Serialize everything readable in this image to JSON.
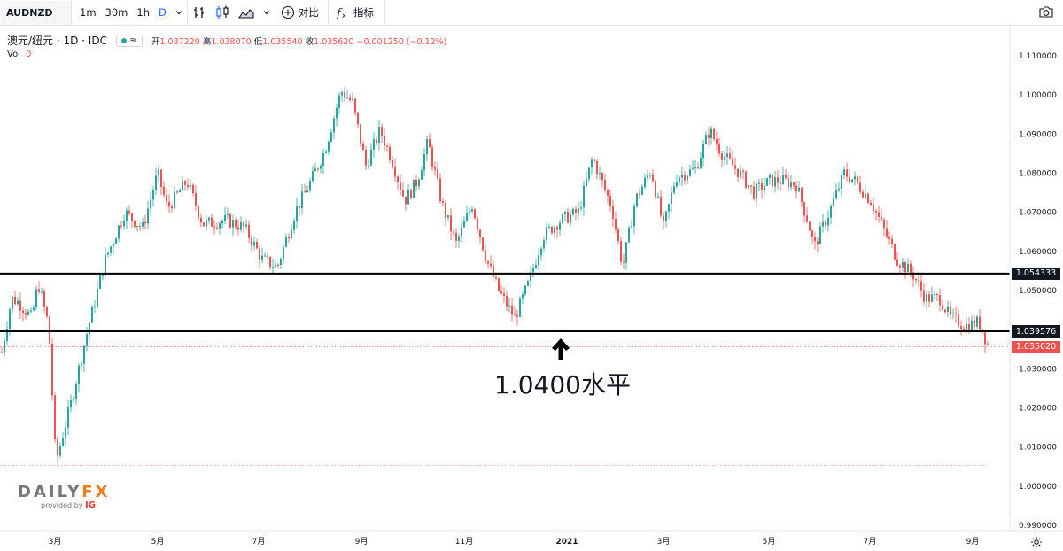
{
  "toolbar": {
    "symbol": "AUDNZD",
    "intervals": [
      "1m",
      "30m",
      "1h",
      "D"
    ],
    "active_interval": "D",
    "compare_label": "对比",
    "indicators_label": "指标",
    "icons": [
      "chevron-down-icon",
      "bar-style-icon",
      "candle-style-icon",
      "area-style-icon",
      "chevron-down-icon",
      "add-compare-icon",
      "fx-indicator-icon",
      "camera-icon"
    ]
  },
  "legend": {
    "title": "澳元/纽元 · 1D · IDC",
    "open_label": "开",
    "open": "1.037220",
    "high_label": "高",
    "high": "1.038070",
    "low_label": "低",
    "low": "1.035540",
    "close_label": "收",
    "close": "1.035620",
    "change": "−0.001250 (−0.12%)",
    "vol_label": "Vol",
    "vol_value": "0"
  },
  "annotation": {
    "text": "1.0400水平",
    "icon": "arrow-up-icon"
  },
  "logo": {
    "main_a": "DAILY",
    "main_b": "FX",
    "sub": "provided by",
    "brand": "IG"
  },
  "colors": {
    "up": "#26a69a",
    "down": "#ef5350",
    "line": "#000000",
    "accent": "#2962ff"
  },
  "chart_data": {
    "type": "candlestick",
    "title": "澳元/纽元 · 1D · IDC",
    "y_range": [
      0.99,
      1.115
    ],
    "y_ticks": [
      "1.110000",
      "1.100000",
      "1.090000",
      "1.080000",
      "1.070000",
      "1.060000",
      "1.050000",
      "1.040000",
      "1.030000",
      "1.020000",
      "1.010000",
      "1.000000",
      "0.990000"
    ],
    "x_ticks": [
      {
        "label": "3月",
        "bold": false
      },
      {
        "label": "5月",
        "bold": false
      },
      {
        "label": "7月",
        "bold": false
      },
      {
        "label": "9月",
        "bold": false
      },
      {
        "label": "11月",
        "bold": false
      },
      {
        "label": "2021",
        "bold": true
      },
      {
        "label": "3月",
        "bold": false
      },
      {
        "label": "5月",
        "bold": false
      },
      {
        "label": "7月",
        "bold": false
      },
      {
        "label": "9月",
        "bold": false
      }
    ],
    "horizontal_lines": [
      {
        "value": 1.054333,
        "label": "1.054333"
      },
      {
        "value": 1.039576,
        "label": "1.039576"
      }
    ],
    "last_price": {
      "value": 1.03562,
      "label": "1.035620"
    },
    "dotted_low": 1.0053,
    "anchors": [
      [
        0,
        1.033
      ],
      [
        12,
        1.048
      ],
      [
        20,
        1.047
      ],
      [
        35,
        1.043
      ],
      [
        42,
        1.052
      ],
      [
        54,
        1.041
      ],
      [
        62,
        1.006
      ],
      [
        80,
        1.022
      ],
      [
        98,
        1.04
      ],
      [
        118,
        1.058
      ],
      [
        140,
        1.07
      ],
      [
        160,
        1.066
      ],
      [
        177,
        1.08
      ],
      [
        188,
        1.071
      ],
      [
        210,
        1.078
      ],
      [
        228,
        1.067
      ],
      [
        255,
        1.068
      ],
      [
        275,
        1.066
      ],
      [
        295,
        1.058
      ],
      [
        312,
        1.056
      ],
      [
        332,
        1.07
      ],
      [
        350,
        1.078
      ],
      [
        366,
        1.086
      ],
      [
        384,
        1.101
      ],
      [
        397,
        1.098
      ],
      [
        412,
        1.082
      ],
      [
        428,
        1.091
      ],
      [
        442,
        1.083
      ],
      [
        456,
        1.073
      ],
      [
        470,
        1.078
      ],
      [
        482,
        1.088
      ],
      [
        498,
        1.072
      ],
      [
        514,
        1.062
      ],
      [
        532,
        1.072
      ],
      [
        548,
        1.058
      ],
      [
        562,
        1.05
      ],
      [
        580,
        1.043
      ],
      [
        596,
        1.052
      ],
      [
        612,
        1.064
      ],
      [
        632,
        1.068
      ],
      [
        652,
        1.07
      ],
      [
        668,
        1.084
      ],
      [
        680,
        1.077
      ],
      [
        690,
        1.071
      ],
      [
        702,
        1.056
      ],
      [
        716,
        1.073
      ],
      [
        734,
        1.081
      ],
      [
        748,
        1.066
      ],
      [
        762,
        1.079
      ],
      [
        784,
        1.081
      ],
      [
        800,
        1.091
      ],
      [
        814,
        1.085
      ],
      [
        834,
        1.08
      ],
      [
        850,
        1.075
      ],
      [
        868,
        1.078
      ],
      [
        885,
        1.078
      ],
      [
        898,
        1.077
      ],
      [
        912,
        1.067
      ],
      [
        918,
        1.061
      ],
      [
        935,
        1.07
      ],
      [
        952,
        1.08
      ],
      [
        964,
        1.078
      ],
      [
        982,
        1.073
      ],
      [
        998,
        1.065
      ],
      [
        1012,
        1.058
      ],
      [
        1030,
        1.054
      ],
      [
        1044,
        1.048
      ],
      [
        1060,
        1.048
      ],
      [
        1072,
        1.043
      ],
      [
        1090,
        1.041
      ],
      [
        1104,
        1.042
      ],
      [
        1115,
        1.0356
      ]
    ]
  }
}
